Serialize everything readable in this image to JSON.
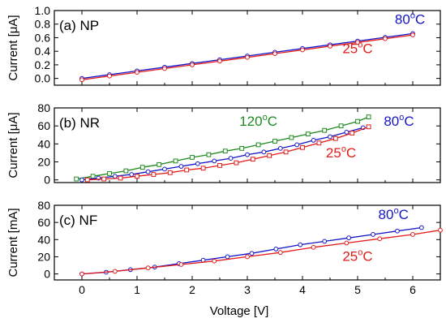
{
  "chart_data": [
    {
      "type": "line",
      "panel_label": "(a) NP",
      "ylabel": "Current [μA]",
      "ylim": [
        -0.1,
        1.0
      ],
      "yticks": [
        "0.0",
        "0.2",
        "0.4",
        "0.6",
        "0.8",
        "1.0"
      ],
      "grid": false,
      "series": [
        {
          "name": "80ºC",
          "color": "#1414c8",
          "marker": "circle",
          "x": [
            0,
            0.5,
            1,
            1.5,
            2,
            2.5,
            3,
            3.5,
            4,
            4.5,
            5,
            5.5,
            6
          ],
          "values": [
            0,
            0.055,
            0.11,
            0.165,
            0.22,
            0.275,
            0.33,
            0.385,
            0.44,
            0.495,
            0.55,
            0.605,
            0.66
          ]
        },
        {
          "name": "25ºC",
          "color": "#e21b1b",
          "marker": "circle",
          "x": [
            0,
            0.5,
            1,
            1.5,
            2,
            2.5,
            3,
            3.5,
            4,
            4.5,
            5,
            5.5,
            6
          ],
          "values": [
            -0.02,
            0.035,
            0.09,
            0.145,
            0.2,
            0.255,
            0.31,
            0.365,
            0.42,
            0.475,
            0.53,
            0.585,
            0.64
          ]
        }
      ],
      "annotations": [
        {
          "text": "80ºC",
          "base": "80",
          "sup": "o",
          "unit": "C",
          "color": "#1414c8",
          "x": 5.95,
          "y": 0.8
        },
        {
          "text": "25ºC",
          "base": "25",
          "sup": "o",
          "unit": "C",
          "color": "#e21b1b",
          "x": 5.0,
          "y": 0.37
        }
      ]
    },
    {
      "type": "line",
      "panel_label": "(b) NR",
      "ylabel": "Current [μA]",
      "ylim": [
        -3,
        80
      ],
      "yticks": [
        "0",
        "20",
        "40",
        "60",
        "80"
      ],
      "grid": false,
      "series": [
        {
          "name": "120ºC",
          "color": "#1f8a1f",
          "marker": "square",
          "x": [
            -0.1,
            0.2,
            0.5,
            0.8,
            1.1,
            1.4,
            1.7,
            2.0,
            2.3,
            2.6,
            2.9,
            3.2,
            3.5,
            3.8,
            4.1,
            4.4,
            4.7,
            5.0,
            5.2
          ],
          "values": [
            1,
            4,
            7,
            10,
            14,
            17,
            21,
            25,
            28,
            32,
            35,
            39,
            43,
            47,
            51,
            55,
            60,
            65,
            70
          ]
        },
        {
          "name": "80ºC",
          "color": "#1414c8",
          "marker": "circle",
          "x": [
            0,
            0.3,
            0.6,
            0.9,
            1.2,
            1.5,
            1.8,
            2.1,
            2.4,
            2.7,
            3.0,
            3.3,
            3.6,
            3.9,
            4.2,
            4.5,
            4.8,
            5.1
          ],
          "values": [
            0,
            2,
            4,
            6,
            9,
            12,
            15,
            18,
            21,
            24,
            28,
            31,
            35,
            39,
            44,
            48,
            53,
            58
          ]
        },
        {
          "name": "25ºC",
          "color": "#e21b1b",
          "marker": "square",
          "x": [
            0.1,
            0.4,
            0.7,
            1.0,
            1.3,
            1.6,
            1.9,
            2.2,
            2.5,
            2.8,
            3.1,
            3.4,
            3.7,
            4.0,
            4.3,
            4.6,
            4.9,
            5.2
          ],
          "values": [
            0,
            1,
            2,
            4,
            6,
            8,
            11,
            13,
            16,
            19,
            23,
            27,
            31,
            36,
            41,
            46,
            52,
            59
          ]
        }
      ],
      "annotations": [
        {
          "text": "120ºC",
          "base": "120",
          "sup": "o",
          "unit": "C",
          "color": "#1f8a1f",
          "x": 3.2,
          "y": 60
        },
        {
          "text": "80ºC",
          "base": "80",
          "sup": "o",
          "unit": "C",
          "color": "#1414c8",
          "x": 5.75,
          "y": 60
        },
        {
          "text": "25ºC",
          "base": "25",
          "sup": "o",
          "unit": "C",
          "color": "#e21b1b",
          "x": 4.7,
          "y": 25
        }
      ]
    },
    {
      "type": "line",
      "panel_label": "(c) NF",
      "ylabel": "Current [mA]",
      "xlabel": "Voltage [V]",
      "xlim": [
        -0.5,
        6.5
      ],
      "xticks": [
        "0",
        "1",
        "2",
        "3",
        "4",
        "5",
        "6"
      ],
      "ylim": [
        -7,
        80
      ],
      "yticks": [
        "0",
        "20",
        "40",
        "60",
        "80"
      ],
      "grid": false,
      "series": [
        {
          "name": "80ºC",
          "color": "#1414c8",
          "marker": "circle",
          "x": [
            0,
            0.44,
            0.88,
            1.32,
            1.76,
            2.2,
            2.64,
            3.08,
            3.52,
            3.96,
            4.4,
            4.84,
            5.28,
            5.72,
            6.16
          ],
          "values": [
            0,
            2,
            5,
            8,
            12,
            16,
            20,
            24,
            29,
            34,
            38,
            42,
            46,
            50,
            54
          ]
        },
        {
          "name": "25ºC",
          "color": "#e21b1b",
          "marker": "circle",
          "x": [
            0,
            0.6,
            1.2,
            1.8,
            2.4,
            3.0,
            3.6,
            4.2,
            4.8,
            5.4,
            6.0,
            6.5
          ],
          "values": [
            0,
            3,
            7,
            11,
            15,
            20,
            25,
            31,
            36,
            41,
            46,
            51
          ]
        }
      ],
      "annotations": [
        {
          "text": "80ºC",
          "base": "80",
          "sup": "o",
          "unit": "C",
          "color": "#1414c8",
          "x": 5.65,
          "y": 64
        },
        {
          "text": "25ºC",
          "base": "25",
          "sup": "o",
          "unit": "C",
          "color": "#e21b1b",
          "x": 5.0,
          "y": 15
        }
      ]
    }
  ]
}
